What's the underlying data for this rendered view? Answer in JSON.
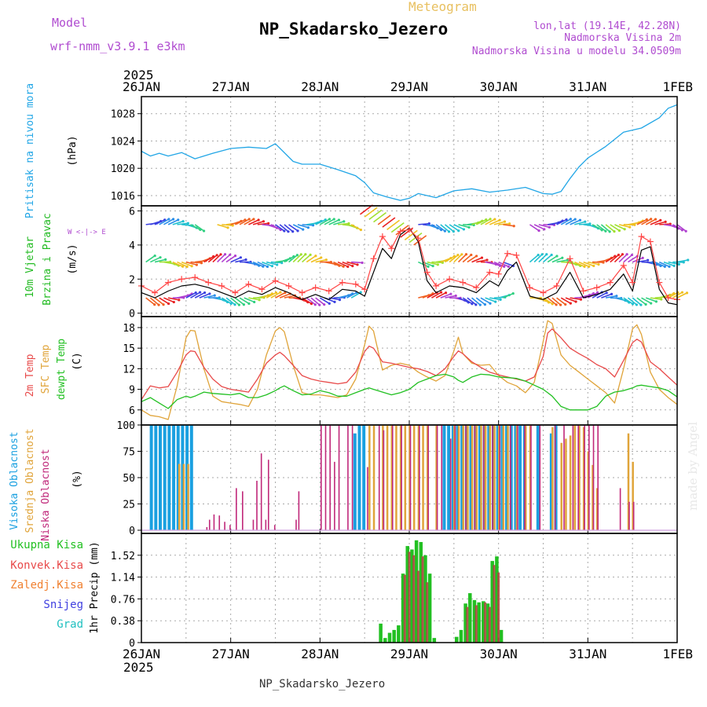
{
  "header": {
    "model_label": "Model",
    "model_name": "wrf-nmm_v3.9.1 e3km",
    "product": "Meteogram",
    "station": "NP_Skadarsko_Jezero",
    "lonlat": "lon,lat (19.14E, 42.28N)",
    "elevation": "Nadmorska Visina 2m",
    "model_elevation": "Nadmorska Visina u modelu 34.0509m",
    "footer_station": "NP_Skadarsko_Jezero",
    "credit": "made by Angel"
  },
  "time_axis": {
    "year": "2025",
    "labels": [
      "26JAN",
      "27JAN",
      "28JAN",
      "29JAN",
      "30JAN",
      "31JAN",
      "1FEB"
    ],
    "days": 6
  },
  "colors": {
    "pressure": "#22a6e6",
    "wind_label": "#22bb22",
    "wind_obs": "#000000",
    "gust": "#ff4444",
    "t2m": "#e84a4a",
    "tsfc": "#e0a43a",
    "dewpt": "#22c022",
    "cloud_high": "#1aa0e0",
    "cloud_mid": "#e0a43a",
    "cloud_low": "#c0287a",
    "precip_total": "#22c022",
    "precip_conv": "#e84a4a",
    "precip_strat": "#f08030",
    "snow": "#4040e0",
    "grad": "#20c0c0",
    "purple": "#b04cd0",
    "gold": "#e8c060"
  },
  "chart_data": [
    {
      "type": "line",
      "id": "pressure",
      "ylabel": "Pritisak na nivou mora",
      "unit": "(hPa)",
      "yticks": [
        "1016",
        "1020",
        "1024",
        "1028"
      ],
      "ylim": [
        1014.5,
        1030.5
      ],
      "x": [
        0,
        0.1,
        0.2,
        0.3,
        0.45,
        0.6,
        0.8,
        1.0,
        1.2,
        1.4,
        1.5,
        1.7,
        1.8,
        2.0,
        2.2,
        2.4,
        2.5,
        2.6,
        2.75,
        2.9,
        3.0,
        3.1,
        3.3,
        3.5,
        3.7,
        3.9,
        4.1,
        4.3,
        4.5,
        4.6,
        4.7,
        4.8,
        4.9,
        5.0,
        5.2,
        5.4,
        5.6,
        5.8,
        5.9,
        6.0
      ],
      "series": [
        {
          "name": "MSLP",
          "values": [
            1022.5,
            1021.8,
            1022.2,
            1021.8,
            1022.3,
            1021.4,
            1022.2,
            1022.9,
            1023.1,
            1022.9,
            1023.6,
            1021.0,
            1020.6,
            1020.6,
            1019.8,
            1018.9,
            1017.9,
            1016.4,
            1015.8,
            1015.3,
            1015.6,
            1016.3,
            1015.7,
            1016.7,
            1017.0,
            1016.5,
            1016.8,
            1017.2,
            1016.3,
            1016.2,
            1016.6,
            1018.5,
            1020.2,
            1021.5,
            1023.2,
            1025.3,
            1025.9,
            1027.4,
            1028.8,
            1029.3
          ]
        }
      ]
    },
    {
      "type": "line",
      "id": "wind",
      "ylabel": "10m Vjetar Brzina i Pravac",
      "unit": "(m/s)",
      "yticks": [
        "0",
        "2",
        "4",
        "6"
      ],
      "ylim": [
        -0.2,
        6.3
      ],
      "compass": "W <-|-> E",
      "x": [
        0,
        0.15,
        0.3,
        0.45,
        0.6,
        0.75,
        0.9,
        1.05,
        1.2,
        1.35,
        1.5,
        1.65,
        1.8,
        1.95,
        2.1,
        2.25,
        2.4,
        2.5,
        2.6,
        2.7,
        2.8,
        2.9,
        3.0,
        3.1,
        3.2,
        3.3,
        3.45,
        3.6,
        3.75,
        3.9,
        4.0,
        4.1,
        4.2,
        4.35,
        4.5,
        4.65,
        4.8,
        4.95,
        5.1,
        5.25,
        5.4,
        5.5,
        5.6,
        5.7,
        5.8,
        5.9,
        6.0
      ],
      "series": [
        {
          "name": "Brzina",
          "values": [
            1.2,
            0.9,
            1.3,
            1.6,
            1.7,
            1.5,
            1.2,
            0.9,
            1.3,
            1.1,
            1.5,
            1.2,
            0.8,
            1.1,
            0.8,
            1.4,
            1.3,
            1.0,
            2.4,
            3.8,
            3.2,
            4.6,
            5.0,
            4.2,
            1.9,
            1.2,
            1.6,
            1.5,
            1.2,
            1.9,
            1.6,
            2.5,
            3.0,
            1.0,
            0.8,
            1.2,
            2.4,
            0.9,
            1.1,
            1.4,
            2.3,
            1.3,
            3.7,
            3.9,
            1.4,
            0.6,
            0.5
          ]
        },
        {
          "name": "Udari",
          "values": [
            1.6,
            1.2,
            1.8,
            2.0,
            2.1,
            1.8,
            1.6,
            1.2,
            1.7,
            1.4,
            1.9,
            1.6,
            1.2,
            1.5,
            1.3,
            1.8,
            1.7,
            1.4,
            3.2,
            4.5,
            3.8,
            4.8,
            4.9,
            4.4,
            2.4,
            1.6,
            2.0,
            1.8,
            1.5,
            2.4,
            2.3,
            3.5,
            3.4,
            1.5,
            1.2,
            1.6,
            3.2,
            1.3,
            1.5,
            1.8,
            2.8,
            1.8,
            4.5,
            4.2,
            1.8,
            0.9,
            0.8
          ]
        }
      ],
      "arrow_rows": [
        {
          "level": 5.2,
          "x_ranges": [
            [
              0.05,
              0.6
            ],
            [
              0.85,
              2.35
            ],
            [
              3.1,
              4.05
            ],
            [
              4.35,
              6.0
            ]
          ]
        },
        {
          "level": 3.0,
          "x_ranges": [
            [
              0.05,
              2.35
            ],
            [
              3.1,
              4.05
            ],
            [
              4.35,
              6.0
            ]
          ]
        },
        {
          "level": 0.9,
          "x_ranges": [
            [
              0.05,
              2.35
            ],
            [
              3.1,
              4.05
            ],
            [
              4.35,
              6.0
            ]
          ]
        }
      ]
    },
    {
      "type": "line",
      "id": "temperature",
      "ylabel": "2m Temp / SFC Temp / dewpt Temp",
      "labels": [
        "2m Temp",
        "SFC Temp",
        "dewpt Temp"
      ],
      "unit": "(C)",
      "yticks": [
        "6",
        "9",
        "12",
        "15",
        "18"
      ],
      "ylim": [
        3.8,
        19.6
      ],
      "x": [
        0,
        0.1,
        0.2,
        0.3,
        0.4,
        0.5,
        0.55,
        0.6,
        0.7,
        0.8,
        0.9,
        1.0,
        1.1,
        1.2,
        1.3,
        1.4,
        1.5,
        1.55,
        1.6,
        1.7,
        1.8,
        1.9,
        2.0,
        2.1,
        2.2,
        2.3,
        2.4,
        2.5,
        2.55,
        2.6,
        2.7,
        2.8,
        2.9,
        3.0,
        3.1,
        3.2,
        3.3,
        3.4,
        3.5,
        3.55,
        3.6,
        3.7,
        3.8,
        3.9,
        4.0,
        4.1,
        4.2,
        4.3,
        4.4,
        4.5,
        4.55,
        4.6,
        4.7,
        4.8,
        4.9,
        5.0,
        5.1,
        5.2,
        5.3,
        5.4,
        5.5,
        5.55,
        5.6,
        5.7,
        5.8,
        5.9,
        6.0
      ],
      "series": [
        {
          "name": "2m Temp",
          "values": [
            7.5,
            9.5,
            9.2,
            9.4,
            11.5,
            14.0,
            14.6,
            14.5,
            12.2,
            10.5,
            9.4,
            9.0,
            8.8,
            8.6,
            10.5,
            12.8,
            14.0,
            14.4,
            13.9,
            12.5,
            11.0,
            10.5,
            10.2,
            10.0,
            9.8,
            10.0,
            11.5,
            14.5,
            15.3,
            15.0,
            13.0,
            12.8,
            12.5,
            12.2,
            12.0,
            11.6,
            11.0,
            12.0,
            13.8,
            14.6,
            14.2,
            13.0,
            12.2,
            11.5,
            11.1,
            10.8,
            10.5,
            10.2,
            10.8,
            13.8,
            17.2,
            17.8,
            16.5,
            15.0,
            14.2,
            13.5,
            12.6,
            12.0,
            10.8,
            13.2,
            15.8,
            16.3,
            15.9,
            13.0,
            12.0,
            10.8,
            9.6
          ]
        },
        {
          "name": "SFC Temp",
          "values": [
            6.0,
            5.2,
            5.0,
            4.6,
            9.5,
            16.5,
            17.6,
            17.5,
            12.0,
            8.0,
            7.2,
            7.0,
            6.8,
            6.5,
            9.0,
            14.0,
            17.5,
            18.0,
            17.4,
            12.5,
            8.5,
            8.2,
            8.2,
            8.0,
            7.8,
            8.2,
            10.5,
            15.5,
            18.2,
            17.5,
            11.8,
            12.5,
            12.8,
            12.5,
            11.5,
            10.8,
            10.2,
            11.0,
            14.6,
            16.6,
            14.2,
            12.8,
            12.5,
            12.6,
            11.0,
            10.0,
            9.5,
            8.5,
            10.0,
            16.0,
            19.0,
            18.6,
            14.0,
            12.5,
            11.5,
            10.5,
            9.5,
            8.5,
            7.0,
            12.0,
            17.8,
            18.4,
            17.0,
            11.5,
            9.0,
            7.8,
            6.8
          ]
        },
        {
          "name": "dewpt Temp",
          "values": [
            7.2,
            7.8,
            7.0,
            6.2,
            7.5,
            8.0,
            7.8,
            8.0,
            8.6,
            8.4,
            8.3,
            8.2,
            8.4,
            7.8,
            7.8,
            8.2,
            8.8,
            9.2,
            9.5,
            8.8,
            8.2,
            8.3,
            8.8,
            8.5,
            8.0,
            8.0,
            8.5,
            9.0,
            9.2,
            9.0,
            8.6,
            8.2,
            8.5,
            9.0,
            10.0,
            10.5,
            11.0,
            11.2,
            10.8,
            10.3,
            10.0,
            10.8,
            11.2,
            11.1,
            10.8,
            10.7,
            10.6,
            10.2,
            9.6,
            9.0,
            8.5,
            8.0,
            6.5,
            6.0,
            6.0,
            6.0,
            6.5,
            8.0,
            8.6,
            8.8,
            9.2,
            9.5,
            9.6,
            9.4,
            9.2,
            8.8,
            7.9
          ]
        }
      ]
    },
    {
      "type": "bar",
      "id": "clouds",
      "ylabel": "Visoka Oblacnost / Srednja Oblacnost / Niska Oblacnost",
      "labels": [
        "Visoka Oblacnost",
        "Srednja Oblacnost",
        "Niska Oblacnost"
      ],
      "unit": "(%)",
      "yticks": [
        "0",
        "25",
        "50",
        "75",
        "100"
      ],
      "ylim": [
        -3,
        100
      ],
      "series": [
        {
          "name": "Visoka",
          "x": [
            0.12,
            0.17,
            0.22,
            0.27,
            0.32,
            0.37,
            0.42,
            0.47,
            0.52,
            0.57,
            2.4,
            2.45,
            2.5,
            3.4,
            3.45,
            3.5,
            3.55,
            3.6,
            3.65,
            3.7,
            3.75,
            3.8,
            3.85,
            3.9,
            3.95,
            4.0,
            4.05,
            4.1,
            4.15,
            4.2,
            4.25,
            4.3,
            4.45,
            4.6,
            4.65
          ],
          "values": [
            100,
            100,
            100,
            100,
            100,
            100,
            100,
            100,
            100,
            100,
            92,
            100,
            100,
            100,
            100,
            100,
            100,
            100,
            100,
            100,
            100,
            100,
            100,
            100,
            100,
            100,
            100,
            100,
            100,
            100,
            100,
            100,
            100,
            92,
            100
          ]
        },
        {
          "name": "Srednja",
          "x": [
            0.42,
            0.47,
            0.52,
            2.55,
            2.6,
            2.7,
            2.75,
            2.8,
            2.85,
            2.9,
            2.95,
            3.0,
            3.05,
            3.1,
            3.15,
            3.2,
            3.3,
            3.5,
            3.55,
            3.6,
            3.65,
            3.7,
            3.75,
            3.8,
            3.85,
            3.9,
            3.95,
            4.0,
            4.05,
            4.1,
            4.2,
            4.3,
            4.35,
            4.6,
            4.7,
            4.75,
            4.8,
            4.85,
            4.9,
            4.95,
            5.0,
            5.05,
            5.1,
            5.45,
            5.5
          ],
          "values": [
            63,
            63,
            63,
            100,
            100,
            100,
            100,
            100,
            100,
            100,
            100,
            100,
            100,
            100,
            100,
            100,
            100,
            100,
            100,
            100,
            100,
            100,
            100,
            100,
            100,
            100,
            100,
            100,
            100,
            100,
            100,
            100,
            100,
            98,
            83,
            87,
            90,
            100,
            100,
            98,
            75,
            62,
            40,
            92,
            65
          ]
        },
        {
          "name": "Niska",
          "x": [
            0.72,
            0.75,
            0.8,
            0.86,
            0.92,
            0.98,
            1.05,
            1.12,
            1.24,
            1.28,
            1.33,
            1.38,
            1.41,
            1.48,
            1.72,
            1.75,
            2.0,
            2.05,
            2.1,
            2.15,
            2.2,
            2.3,
            2.35,
            2.52,
            2.65,
            2.7,
            2.8,
            2.9,
            3.0,
            3.1,
            3.2,
            3.3,
            3.35,
            3.45,
            3.5,
            3.62,
            3.72,
            3.82,
            3.92,
            4.0,
            4.12,
            4.2,
            4.28,
            4.35,
            4.45,
            4.62,
            4.72,
            4.82,
            4.88,
            4.95,
            5.0,
            5.05,
            5.1,
            5.35,
            5.45,
            5.5
          ],
          "values": [
            3,
            10,
            15,
            14,
            8,
            5,
            40,
            37,
            10,
            47,
            73,
            10,
            67,
            5,
            10,
            37,
            100,
            100,
            100,
            65,
            100,
            100,
            100,
            60,
            100,
            95,
            100,
            100,
            100,
            100,
            100,
            100,
            100,
            87,
            100,
            100,
            100,
            100,
            100,
            100,
            100,
            100,
            100,
            100,
            100,
            100,
            100,
            100,
            100,
            100,
            100,
            100,
            100,
            40,
            27,
            27
          ]
        }
      ]
    },
    {
      "type": "bar",
      "id": "precip",
      "ylabel": "1hr Precip",
      "unit": "(mm)",
      "yticks": [
        "0",
        "0.38",
        "0.76",
        "1.14",
        "1.52"
      ],
      "ylim": [
        0,
        1.9
      ],
      "legend": [
        "Ukupna Kisa",
        "Konvek.Kisa",
        "Zaledj.Kisa",
        "Snijeg",
        "Grad"
      ],
      "series": [
        {
          "name": "Ukupna Kisa",
          "x": [
            2.68,
            2.73,
            2.78,
            2.83,
            2.88,
            2.93,
            2.98,
            3.03,
            3.08,
            3.13,
            3.18,
            3.23,
            3.28,
            3.53,
            3.58,
            3.63,
            3.68,
            3.73,
            3.78,
            3.83,
            3.88,
            3.93,
            3.98,
            4.03
          ],
          "values": [
            0.33,
            0.08,
            0.17,
            0.22,
            0.3,
            1.2,
            1.68,
            1.62,
            1.78,
            1.75,
            1.52,
            1.2,
            0.08,
            0.1,
            0.22,
            0.68,
            0.86,
            0.74,
            0.7,
            0.72,
            0.68,
            1.42,
            1.5,
            0.22
          ]
        },
        {
          "name": "Konvek.Kisa",
          "x": [
            2.95,
            3.0,
            3.05,
            3.1,
            3.15,
            3.2,
            3.65,
            3.75,
            3.85,
            3.9,
            3.95,
            4.0
          ],
          "values": [
            1.18,
            1.58,
            1.52,
            1.25,
            1.5,
            1.05,
            0.62,
            0.65,
            0.7,
            0.62,
            1.35,
            1.22
          ]
        }
      ]
    }
  ]
}
